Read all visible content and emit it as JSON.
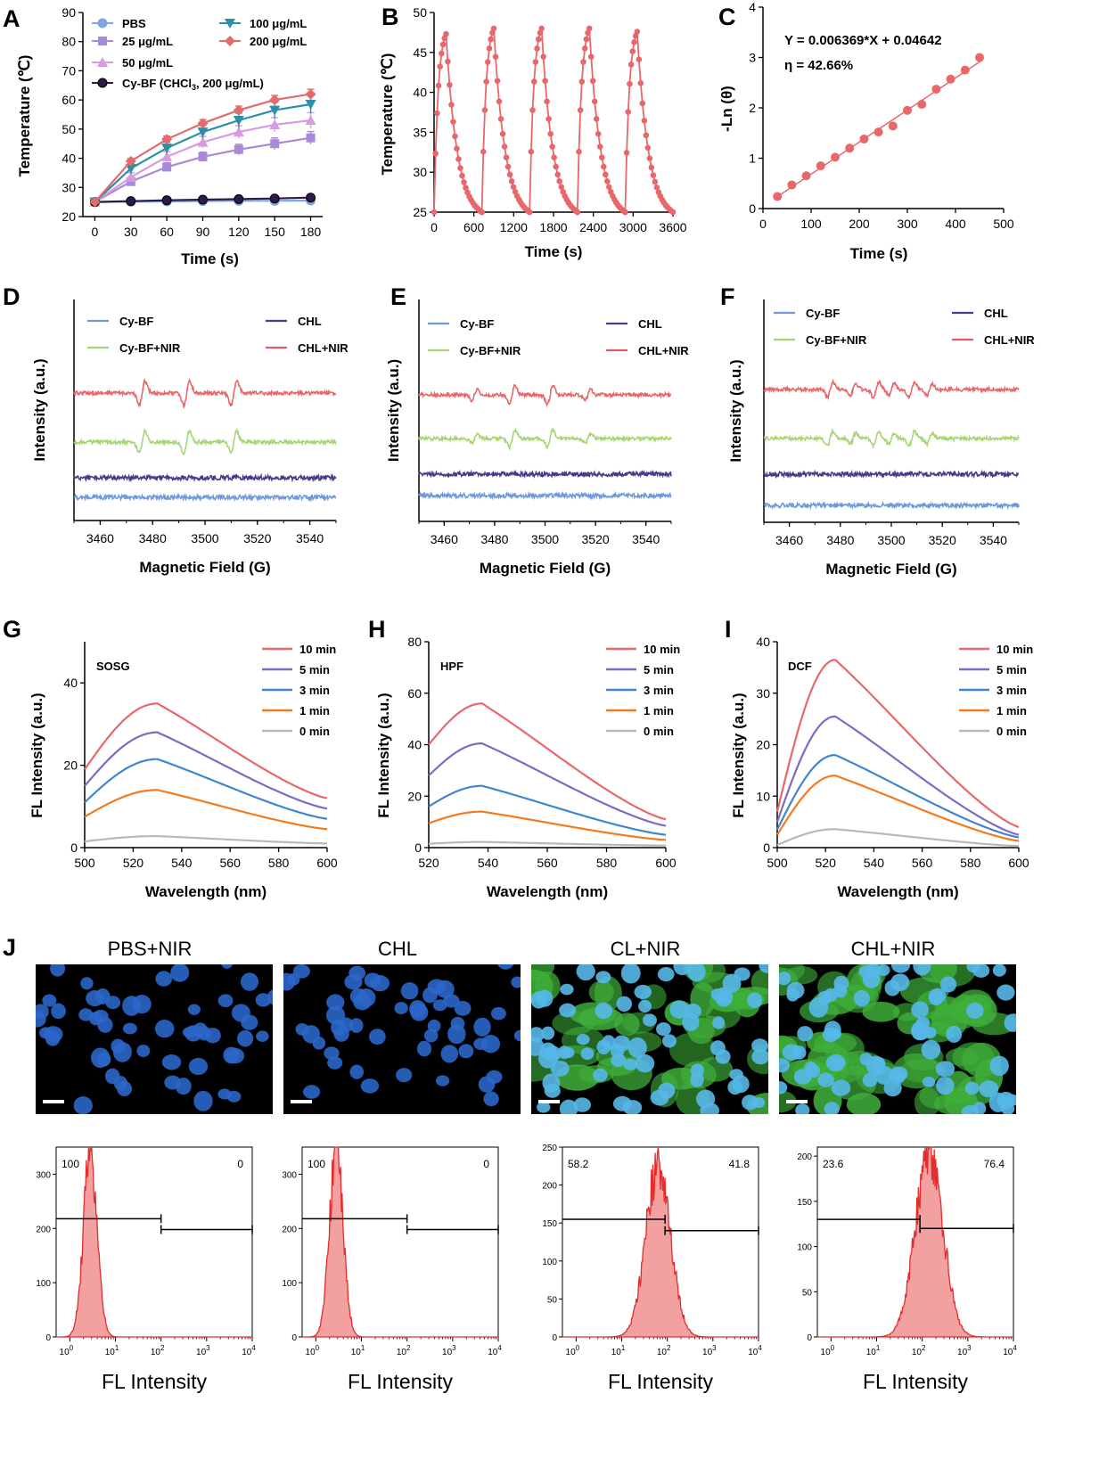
{
  "panel_labels": [
    "A",
    "B",
    "C",
    "D",
    "E",
    "F",
    "G",
    "H",
    "I",
    "J"
  ],
  "colors": {
    "pbs": "#7fa6df",
    "c25": "#a88ad8",
    "c50": "#d79be0",
    "cybf": "#2e1a47",
    "c100": "#2b8fa6",
    "c200": "#e36b6b",
    "red": "#e8676b",
    "blue": "#6f9bdc",
    "green": "#a6d676",
    "purple": "#4b3a8c",
    "pink": "#e45c63",
    "orange": "#f27a1f",
    "gray": "#b8b8b8"
  },
  "chart_data": [
    {
      "id": "A",
      "type": "line",
      "xlabel": "Time (s)",
      "ylabel": "Temperature (℃)",
      "xlim": [
        -10,
        190
      ],
      "ylim": [
        20,
        90
      ],
      "xticks": [
        "0",
        "30",
        "60",
        "90",
        "120",
        "150",
        "180"
      ],
      "yticks": [
        "20",
        "30",
        "40",
        "50",
        "60",
        "70",
        "80",
        "90"
      ],
      "x": [
        0,
        30,
        60,
        90,
        120,
        150,
        180
      ],
      "series": [
        {
          "name": "PBS",
          "values": [
            25,
            25.1,
            25.2,
            25.3,
            25.4,
            25.4,
            25.5
          ]
        },
        {
          "name": "25 μg/mL",
          "values": [
            25,
            32,
            37,
            40.5,
            43,
            45,
            47
          ]
        },
        {
          "name": "50 μg/mL",
          "values": [
            25,
            33.5,
            40.5,
            45.5,
            49,
            51.5,
            53
          ]
        },
        {
          "name": "Cy-BF (CHCl3, 200 μg/mL)",
          "values": [
            25,
            25.3,
            25.6,
            25.8,
            26,
            26.2,
            26.5
          ]
        },
        {
          "name": "100 μg/mL",
          "values": [
            25,
            36.5,
            43.5,
            49,
            53,
            56.5,
            58.5
          ]
        },
        {
          "name": "200 μg/mL",
          "values": [
            25,
            39,
            46.5,
            52,
            56.5,
            60,
            62
          ]
        }
      ]
    },
    {
      "id": "B",
      "type": "line",
      "xlabel": "Time (s)",
      "ylabel": "Temperature (℃)",
      "xlim": [
        0,
        3600
      ],
      "ylim": [
        25,
        50
      ],
      "xticks": [
        "0",
        "600",
        "1200",
        "1800",
        "2400",
        "3000",
        "3600"
      ],
      "yticks": [
        "25",
        "30",
        "35",
        "40",
        "45",
        "50"
      ],
      "cycles": 5,
      "cycle_period": 720,
      "heat_duration": 180,
      "peak_temps": [
        47.3,
        48,
        48,
        48,
        47.6
      ],
      "base_temp": 25
    },
    {
      "id": "C",
      "type": "scatter",
      "xlabel": "Time (s)",
      "ylabel": "-Ln (θ)",
      "xlim": [
        0,
        500
      ],
      "ylim": [
        0,
        4
      ],
      "xticks": [
        "0",
        "100",
        "200",
        "300",
        "400",
        "500"
      ],
      "yticks": [
        "0",
        "1",
        "2",
        "3",
        "4"
      ],
      "annotation1": "Y = 0.006369*X + 0.04642",
      "annotation2": "η = 42.66%",
      "fit": {
        "slope": 0.006369,
        "intercept": 0.04642
      },
      "x": [
        30,
        60,
        90,
        120,
        150,
        180,
        210,
        240,
        270,
        300,
        330,
        360,
        390,
        420,
        450
      ],
      "values": [
        0.24,
        0.47,
        0.65,
        0.85,
        1.02,
        1.2,
        1.38,
        1.52,
        1.64,
        1.95,
        2.07,
        2.37,
        2.57,
        2.75,
        3.0
      ]
    },
    {
      "id": "D",
      "type": "line",
      "xlabel": "Magnetic Field (G)",
      "ylabel": "Intensity (a.u.)",
      "xlim": [
        3450,
        3550
      ],
      "xticks": [
        "3460",
        "3480",
        "3500",
        "3520",
        "3540"
      ],
      "legend": [
        "Cy-BF",
        "CHL",
        "Cy-BF+NIR",
        "CHL+NIR"
      ],
      "peaks": [
        3476,
        3493,
        3511
      ],
      "pattern": "triplet"
    },
    {
      "id": "E",
      "type": "line",
      "xlabel": "Magnetic Field (G)",
      "ylabel": "Intensity (a.u.)",
      "xlim": [
        3450,
        3550
      ],
      "xticks": [
        "3460",
        "3480",
        "3500",
        "3520",
        "3540"
      ],
      "legend": [
        "Cy-BF",
        "CHL",
        "Cy-BF+NIR",
        "CHL+NIR"
      ],
      "peaks": [
        3472,
        3487,
        3502,
        3517
      ],
      "pattern": "quartet"
    },
    {
      "id": "F",
      "type": "line",
      "xlabel": "Magnetic Field (G)",
      "ylabel": "Intensity (a.u.)",
      "xlim": [
        3450,
        3550
      ],
      "xticks": [
        "3460",
        "3480",
        "3500",
        "3520",
        "3540"
      ],
      "legend": [
        "Cy-BF",
        "CHL",
        "Cy-BF+NIR",
        "CHL+NIR"
      ],
      "peaks": [
        3476,
        3485,
        3494,
        3500,
        3508,
        3515
      ],
      "pattern": "sextet"
    },
    {
      "id": "G",
      "type": "line",
      "probe": "SOSG",
      "xlabel": "Wavelength (nm)",
      "ylabel": "FL Intensity (a.u.)",
      "xlim": [
        500,
        600
      ],
      "ylim": [
        0,
        50
      ],
      "xticks": [
        "500",
        "520",
        "540",
        "560",
        "580",
        "600"
      ],
      "yticks": [
        "0",
        "20",
        "40"
      ],
      "ytick_values": [
        0,
        20,
        40
      ],
      "peak_wl": 530,
      "legend": [
        "10 min",
        "5 min",
        "3 min",
        "1 min",
        "0 min"
      ],
      "series": [
        {
          "name": "10 min",
          "start": 19,
          "peak": 35,
          "end": 12
        },
        {
          "name": "5 min",
          "start": 15,
          "peak": 28,
          "end": 9.5
        },
        {
          "name": "3 min",
          "start": 11,
          "peak": 21.5,
          "end": 7
        },
        {
          "name": "1 min",
          "start": 7.5,
          "peak": 14,
          "end": 4.5
        },
        {
          "name": "0 min",
          "start": 1.5,
          "peak": 2.8,
          "end": 1
        }
      ]
    },
    {
      "id": "H",
      "type": "line",
      "probe": "HPF",
      "xlabel": "Wavelength (nm)",
      "ylabel": "FL Intensity (a.u.)",
      "xlim": [
        520,
        600
      ],
      "ylim": [
        0,
        80
      ],
      "xticks": [
        "520",
        "540",
        "560",
        "580",
        "600"
      ],
      "yticks": [
        "0",
        "20",
        "40",
        "60",
        "80"
      ],
      "ytick_values": [
        0,
        20,
        40,
        60,
        80
      ],
      "peak_wl": 538,
      "legend": [
        "10 min",
        "5 min",
        "3 min",
        "1 min",
        "0 min"
      ],
      "series": [
        {
          "name": "10 min",
          "start": 40,
          "peak": 56,
          "end": 11
        },
        {
          "name": "5 min",
          "start": 28,
          "peak": 40.5,
          "end": 8.5
        },
        {
          "name": "3 min",
          "start": 16,
          "peak": 24,
          "end": 5
        },
        {
          "name": "1 min",
          "start": 9.5,
          "peak": 14,
          "end": 3
        },
        {
          "name": "0 min",
          "start": 1.5,
          "peak": 2.2,
          "end": 0.8
        }
      ]
    },
    {
      "id": "I",
      "type": "line",
      "probe": "DCF",
      "xlabel": "Wavelength (nm)",
      "ylabel": "FL Intensity (a.u.)",
      "xlim": [
        500,
        600
      ],
      "ylim": [
        0,
        40
      ],
      "xticks": [
        "500",
        "520",
        "540",
        "560",
        "580",
        "600"
      ],
      "yticks": [
        "0",
        "10",
        "20",
        "30",
        "40"
      ],
      "ytick_values": [
        0,
        10,
        20,
        30,
        40
      ],
      "peak_wl": 524,
      "legend": [
        "10 min",
        "5 min",
        "3 min",
        "1 min",
        "0 min"
      ],
      "series": [
        {
          "name": "10 min",
          "start": 7,
          "peak": 36.5,
          "end": 4
        },
        {
          "name": "5 min",
          "start": 5,
          "peak": 25.5,
          "end": 2.5
        },
        {
          "name": "3 min",
          "start": 3.5,
          "peak": 18,
          "end": 2
        },
        {
          "name": "1 min",
          "start": 2.5,
          "peak": 14,
          "end": 1.3
        },
        {
          "name": "0 min",
          "start": 0.5,
          "peak": 3.6,
          "end": 0.3
        }
      ]
    },
    {
      "id": "J-flow",
      "type": "area",
      "xlabel": "FL Intensity",
      "plots": [
        {
          "title": "PBS+NIR",
          "ymax": 350,
          "yticks": [
            "0",
            "100",
            "200",
            "300"
          ],
          "ytick_values": [
            0,
            100,
            200,
            300
          ],
          "left_pct": "100",
          "right_pct": "0",
          "peak_log": 0.45,
          "sigma": 0.15,
          "peak": 340,
          "gate_log": 2,
          "gate_high_y": 218,
          "gate_low_y": 198
        },
        {
          "title": "CHL",
          "ymax": 350,
          "yticks": [
            "0",
            "100",
            "200",
            "300"
          ],
          "ytick_values": [
            0,
            100,
            200,
            300
          ],
          "left_pct": "100",
          "right_pct": "0",
          "peak_log": 0.45,
          "sigma": 0.15,
          "peak": 340,
          "gate_log": 2,
          "gate_high_y": 218,
          "gate_low_y": 198
        },
        {
          "title": "CL+NIR",
          "ymax": 250,
          "yticks": [
            "0",
            "50",
            "100",
            "150",
            "200",
            "250"
          ],
          "ytick_values": [
            0,
            50,
            100,
            150,
            200,
            250
          ],
          "left_pct": "58.2",
          "right_pct": "41.8",
          "peak_log": 1.8,
          "sigma": 0.27,
          "peak": 225,
          "gate_log": 1.95,
          "gate_high_y": 155,
          "gate_low_y": 140
        },
        {
          "title": "CHL+NIR",
          "ymax": 210,
          "yticks": [
            "0",
            "50",
            "100",
            "150",
            "200"
          ],
          "ytick_values": [
            0,
            50,
            100,
            150,
            200
          ],
          "left_pct": "23.6",
          "right_pct": "76.4",
          "peak_log": 2.15,
          "sigma": 0.3,
          "peak": 205,
          "gate_log": 1.95,
          "gate_high_y": 130,
          "gate_low_y": 120
        }
      ]
    }
  ],
  "micrographs": [
    {
      "title": "PBS+NIR",
      "green": 0
    },
    {
      "title": "CHL",
      "green": 0
    },
    {
      "title": "CL+NIR",
      "green": 0.6
    },
    {
      "title": "CHL+NIR",
      "green": 0.85
    }
  ]
}
